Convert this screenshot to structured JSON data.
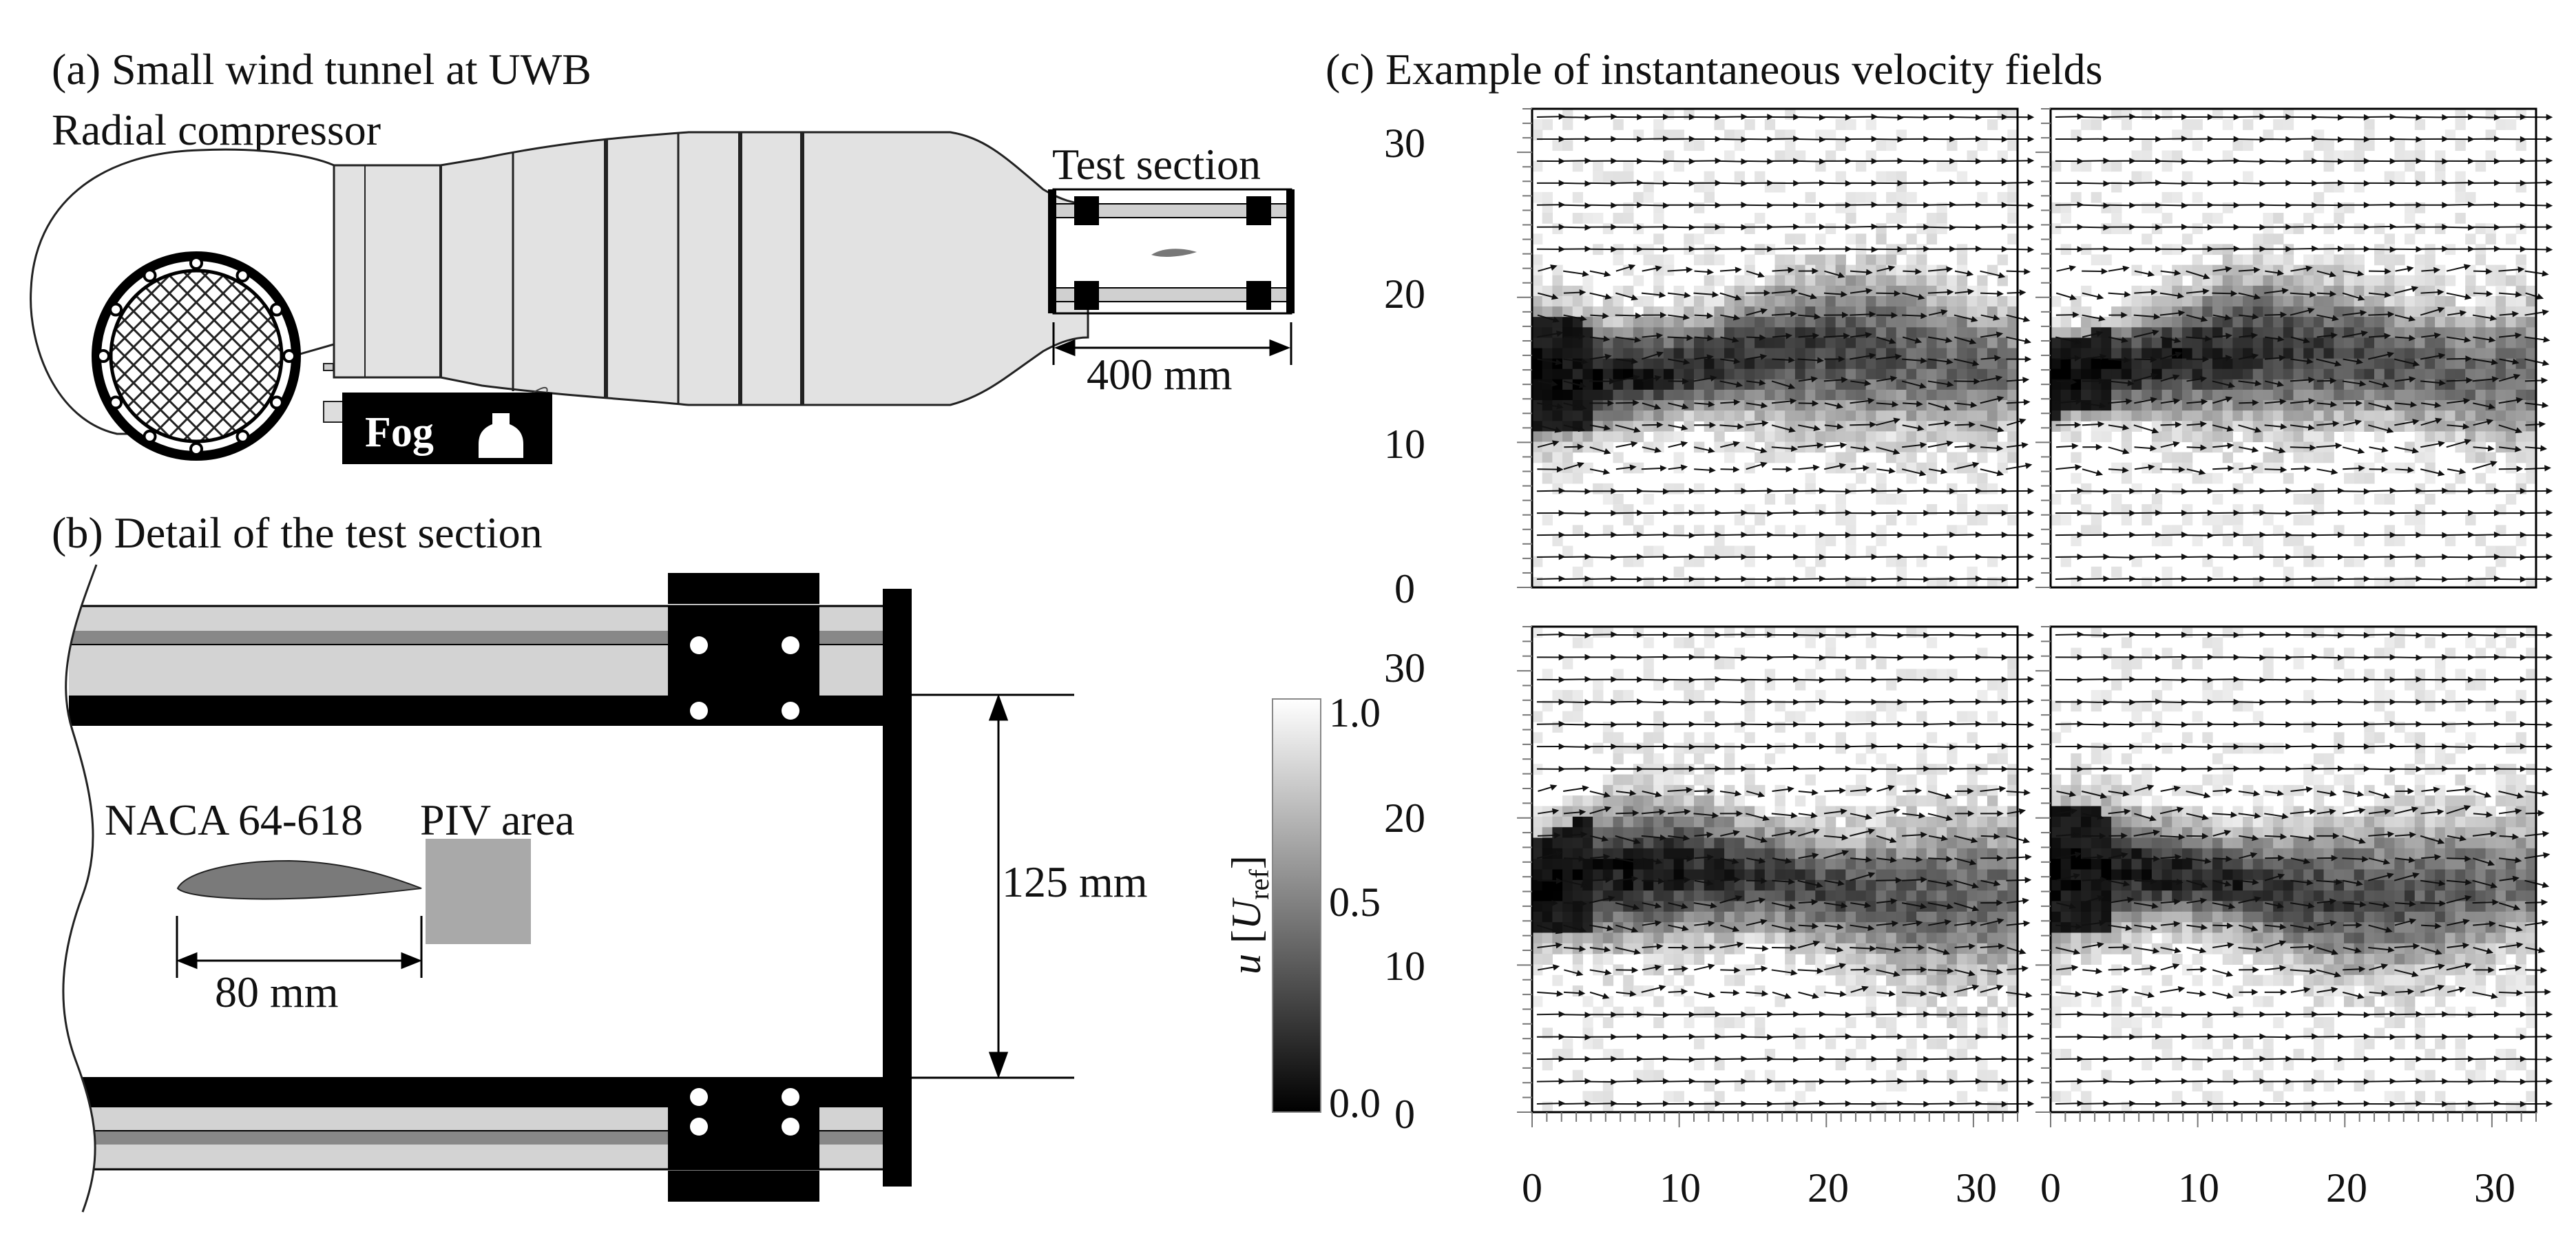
{
  "panel_a": {
    "title": "(a) Small wind tunnel at UWB",
    "radial_label": "Radial compressor",
    "test_label": "Test section",
    "dim_label": "400 mm",
    "fog_label": "Fog"
  },
  "panel_b": {
    "title": "(b) Detail of the test section",
    "airfoil_label": "NACA 64-618",
    "piv_label": "PIV area",
    "chord_label": "80 mm",
    "height_label": "125 mm"
  },
  "panel_c": {
    "title": "(c) Example of instantaneous velocity fields",
    "colorbar": {
      "label_main": "u",
      "label_open": "[",
      "label_U": "U",
      "label_sub": "ref",
      "label_close": "]",
      "tick_top": "1.0",
      "tick_mid": "0.5",
      "tick_bottom": "0.0",
      "range": [
        0.0,
        1.0
      ],
      "colormap": "grayscale-black-to-white"
    },
    "axes": {
      "y_ticks": [
        "0",
        "10",
        "20",
        "30"
      ],
      "x_ticks": [
        "0",
        "10",
        "20",
        "30"
      ],
      "range": [
        0,
        33
      ]
    },
    "panels": [
      {
        "id": "top-left"
      },
      {
        "id": "top-right"
      },
      {
        "id": "bottom-left"
      },
      {
        "id": "bottom-right"
      }
    ]
  },
  "colors": {
    "duct_fill": "#e2e2e2",
    "tube_light": "#d3d3d3",
    "tube_stripe": "#888888",
    "black": "#000000",
    "airfoil": "#7a7a7a",
    "piv_area": "#a9a9a9"
  }
}
